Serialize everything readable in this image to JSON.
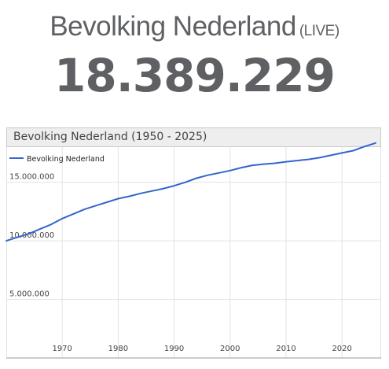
{
  "header": {
    "title": "Bevolking Nederland",
    "live_label": "(LIVE)",
    "counter": "18.389.229"
  },
  "chart_header": "Bevolking Nederland (1950 - 2025)",
  "colors": {
    "line": "#3366cc",
    "text": "#5f6064",
    "grid": "#e3e3e3"
  },
  "chart_data": {
    "type": "line",
    "title": "Bevolking Nederland (1950 - 2025)",
    "xlabel": "",
    "ylabel": "",
    "legend_position": "top-left",
    "grid": true,
    "xlim": [
      1960,
      2027
    ],
    "ylim": [
      0,
      18000000
    ],
    "x_ticks": [
      1970,
      1980,
      1990,
      2000,
      2010,
      2020
    ],
    "y_ticks": [
      5000000,
      10000000,
      15000000
    ],
    "x_tick_labels": [
      "1970",
      "1980",
      "1990",
      "2000",
      "2010",
      "2020"
    ],
    "y_tick_labels": [
      "5.000.000",
      "10.000.000",
      "15.000.000"
    ],
    "series": [
      {
        "name": "Bevolking Nederland",
        "x": [
          1960,
          1962,
          1964,
          1966,
          1968,
          1970,
          1972,
          1974,
          1976,
          1978,
          1980,
          1982,
          1984,
          1986,
          1988,
          1990,
          1992,
          1994,
          1996,
          1998,
          2000,
          2002,
          2004,
          2006,
          2008,
          2010,
          2012,
          2014,
          2016,
          2018,
          2020,
          2022,
          2024,
          2026
        ],
        "values": [
          10000000.0,
          10300000.0,
          10600000.0,
          11000000.0,
          11400000.0,
          11900000.0,
          12300000.0,
          12700000.0,
          13000000.0,
          13300000.0,
          13600000.0,
          13800000.0,
          14050000.0,
          14250000.0,
          14450000.0,
          14700000.0,
          15000000.0,
          15350000.0,
          15600000.0,
          15800000.0,
          16000000.0,
          16250000.0,
          16450000.0,
          16550000.0,
          16620000.0,
          16750000.0,
          16850000.0,
          16950000.0,
          17100000.0,
          17300000.0,
          17500000.0,
          17700000.0,
          18050000.0,
          18350000.0
        ]
      }
    ]
  }
}
